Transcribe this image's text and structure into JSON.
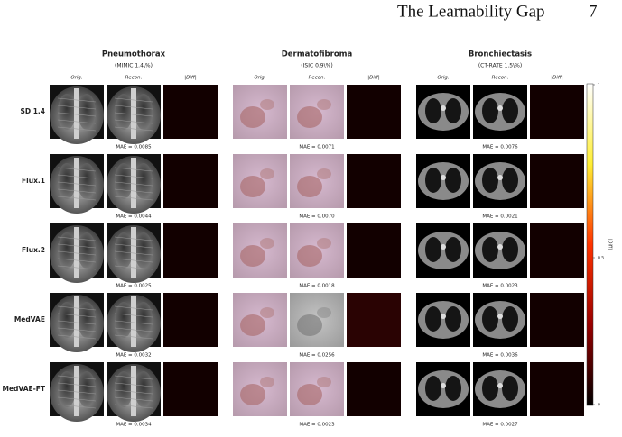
{
  "header": {
    "title": "The Learnability Gap",
    "page_number": "7"
  },
  "figure": {
    "columns": [
      {
        "title": "Pneumothorax",
        "subtitle": "(MIMIC 1.4\\%)",
        "panel_labels": [
          "Orig.",
          "Recon.",
          "|Diff|"
        ]
      },
      {
        "title": "Dermatofibroma",
        "subtitle": "(ISIC 0.9\\%)",
        "panel_labels": [
          "Orig.",
          "Recon.",
          "|Diff|"
        ]
      },
      {
        "title": "Bronchiectasis",
        "subtitle": "(CT-RATE 1.5\\%)",
        "panel_labels": [
          "Orig.",
          "Recon.",
          "|Diff|"
        ]
      }
    ],
    "rows": [
      {
        "label": "SD 1.4",
        "mae": [
          "MAE = 0.0085",
          "MAE = 0.0071",
          "MAE = 0.0076"
        ]
      },
      {
        "label": "Flux.1",
        "mae": [
          "MAE = 0.0044",
          "MAE = 0.0070",
          "MAE = 0.0021"
        ]
      },
      {
        "label": "Flux.2",
        "mae": [
          "MAE = 0.0025",
          "MAE = 0.0018",
          "MAE = 0.0023"
        ]
      },
      {
        "label": "MedVAE",
        "mae": [
          "MAE = 0.0032",
          "MAE = 0.0256",
          "MAE = 0.0036"
        ]
      },
      {
        "label": "MedVAE-FT",
        "mae": [
          "MAE = 0.0034",
          "MAE = 0.0023",
          "MAE = 0.0027"
        ]
      }
    ],
    "colorbar": {
      "label": "|Diff|",
      "ticks": [
        "1",
        "0.5",
        "0"
      ]
    }
  }
}
